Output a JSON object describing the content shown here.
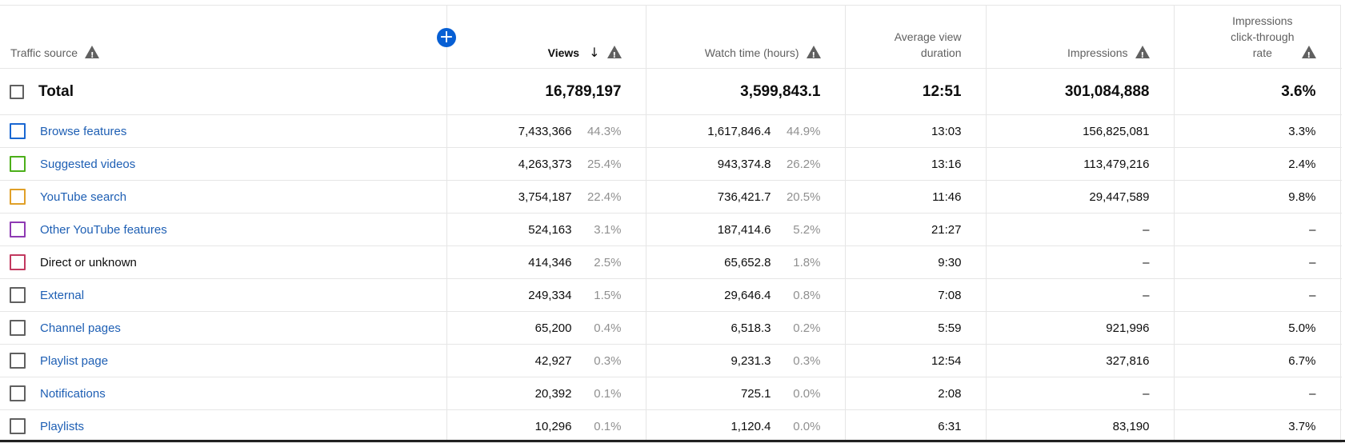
{
  "add_metric_label": "+",
  "columns": {
    "source": "Traffic source",
    "views": "Views",
    "views_sort_icon": "arrow-down-icon",
    "watch_time": "Watch time (hours)",
    "avg_view_duration": "Average view\nduration",
    "impressions": "Impressions",
    "ctr": "Impressions\nclick-through\nrate"
  },
  "total": {
    "label": "Total",
    "views": "16,789,197",
    "watch_time": "3,599,843.1",
    "avg_view_duration": "12:51",
    "impressions": "301,084,888",
    "ctr": "3.6%"
  },
  "rows": [
    {
      "label": "Browse features",
      "color": "#1967d2",
      "link": true,
      "views": "7,433,366",
      "views_pct": "44.3%",
      "watch_time": "1,617,846.4",
      "watch_pct": "44.9%",
      "avd": "13:03",
      "impressions": "156,825,081",
      "ctr": "3.3%"
    },
    {
      "label": "Suggested videos",
      "color": "#4caf1a",
      "link": true,
      "views": "4,263,373",
      "views_pct": "25.4%",
      "watch_time": "943,374.8",
      "watch_pct": "26.2%",
      "avd": "13:16",
      "impressions": "113,479,216",
      "ctr": "2.4%"
    },
    {
      "label": "YouTube search",
      "color": "#e0a028",
      "link": true,
      "views": "3,754,187",
      "views_pct": "22.4%",
      "watch_time": "736,421.7",
      "watch_pct": "20.5%",
      "avd": "11:46",
      "impressions": "29,447,589",
      "ctr": "9.8%"
    },
    {
      "label": "Other YouTube features",
      "color": "#8e3ab3",
      "link": true,
      "views": "524,163",
      "views_pct": "3.1%",
      "watch_time": "187,414.6",
      "watch_pct": "5.2%",
      "avd": "21:27",
      "impressions": "–",
      "ctr": "–"
    },
    {
      "label": "Direct or unknown",
      "color": "#c2395f",
      "link": false,
      "views": "414,346",
      "views_pct": "2.5%",
      "watch_time": "65,652.8",
      "watch_pct": "1.8%",
      "avd": "9:30",
      "impressions": "–",
      "ctr": "–"
    },
    {
      "label": "External",
      "color": "#606060",
      "link": true,
      "views": "249,334",
      "views_pct": "1.5%",
      "watch_time": "29,646.4",
      "watch_pct": "0.8%",
      "avd": "7:08",
      "impressions": "–",
      "ctr": "–"
    },
    {
      "label": "Channel pages",
      "color": "#606060",
      "link": true,
      "views": "65,200",
      "views_pct": "0.4%",
      "watch_time": "6,518.3",
      "watch_pct": "0.2%",
      "avd": "5:59",
      "impressions": "921,996",
      "ctr": "5.0%"
    },
    {
      "label": "Playlist page",
      "color": "#606060",
      "link": true,
      "views": "42,927",
      "views_pct": "0.3%",
      "watch_time": "9,231.3",
      "watch_pct": "0.3%",
      "avd": "12:54",
      "impressions": "327,816",
      "ctr": "6.7%"
    },
    {
      "label": "Notifications",
      "color": "#606060",
      "link": true,
      "views": "20,392",
      "views_pct": "0.1%",
      "watch_time": "725.1",
      "watch_pct": "0.0%",
      "avd": "2:08",
      "impressions": "–",
      "ctr": "–"
    },
    {
      "label": "Playlists",
      "color": "#606060",
      "link": true,
      "views": "10,296",
      "views_pct": "0.1%",
      "watch_time": "1,120.4",
      "watch_pct": "0.0%",
      "avd": "6:31",
      "impressions": "83,190",
      "ctr": "3.7%"
    }
  ]
}
